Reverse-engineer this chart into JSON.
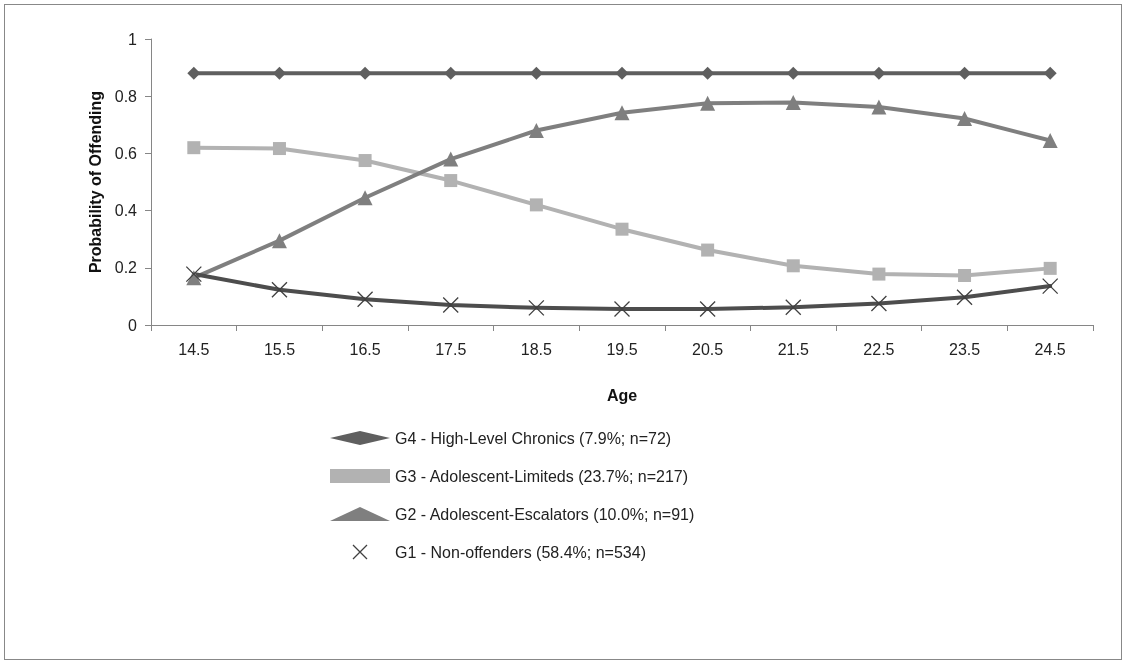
{
  "chart_data": {
    "type": "line",
    "xlabel": "Age",
    "ylabel": "Probability of Offending",
    "categories": [
      "14.5",
      "15.5",
      "16.5",
      "17.5",
      "18.5",
      "19.5",
      "20.5",
      "21.5",
      "22.5",
      "23.5",
      "24.5"
    ],
    "series": [
      {
        "name": "G4 - High-Level Chronics (7.9%; n=72)",
        "color": "#5f5f5f",
        "marker": "diamond",
        "values": [
          0.88,
          0.88,
          0.88,
          0.88,
          0.88,
          0.88,
          0.88,
          0.88,
          0.88,
          0.88,
          0.88
        ]
      },
      {
        "name": "G3 - Adolescent-Limiteds (23.7%; n=217)",
        "color": "#b2b2b2",
        "marker": "square",
        "values": [
          0.62,
          0.617,
          0.575,
          0.505,
          0.42,
          0.335,
          0.262,
          0.207,
          0.178,
          0.173,
          0.198
        ]
      },
      {
        "name": "G2 - Adolescent-Escalators (10.0%; n=91)",
        "color": "#7f7f7f",
        "marker": "triangle",
        "values": [
          0.165,
          0.295,
          0.445,
          0.58,
          0.68,
          0.742,
          0.775,
          0.778,
          0.762,
          0.722,
          0.645
        ]
      },
      {
        "name": "G1 - Non-offenders (58.4%; n=534)",
        "color": "#4d4d4d",
        "marker": "cross",
        "values": [
          0.178,
          0.123,
          0.09,
          0.07,
          0.06,
          0.056,
          0.056,
          0.062,
          0.075,
          0.097,
          0.136
        ]
      }
    ],
    "ylim": [
      0,
      1
    ],
    "yticks": [
      0,
      0.2,
      0.4,
      0.6,
      0.8,
      1
    ],
    "grid": false,
    "legend": "bottom",
    "line_style": "solid"
  }
}
